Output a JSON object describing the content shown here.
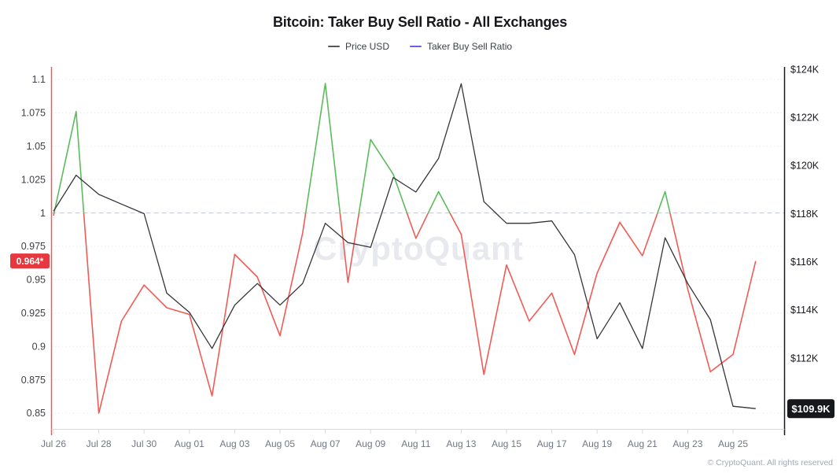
{
  "header": {
    "title": "Bitcoin: Taker Buy Sell Ratio - All Exchanges"
  },
  "legend": [
    {
      "label": "Price USD",
      "color": "#55555c"
    },
    {
      "label": "Taker Buy Sell Ratio",
      "color": "#6760e4"
    }
  ],
  "watermark": "CryptoQuant",
  "footer": {
    "copyright": "© CryptoQuant. All rights reserved"
  },
  "colors": {
    "price_line": "#35353a",
    "ratio_above": "#5cbb5c",
    "ratio_below": "#f05b56",
    "left_axis_line": "#f05b56",
    "right_axis_line": "#17181c",
    "grid_dotted": "#e9ebee",
    "baseline_dashed": "#c9ced6",
    "x_baseline": "#d6d9de",
    "ratio_badge_bg": "#e5383f",
    "price_badge_bg": "#17181c",
    "left_tick_text": "#3f3f46",
    "right_tick_text": "#16181d",
    "x_tick_text": "#707784",
    "watermark_text": "#e7e9ee"
  },
  "chart_data": {
    "type": "line",
    "title": "Bitcoin: Taker Buy Sell Ratio - All Exchanges",
    "x": [
      "Jul 26",
      "Jul 27",
      "Jul 28",
      "Jul 29",
      "Jul 30",
      "Jul 31",
      "Aug 01",
      "Aug 02",
      "Aug 03",
      "Aug 04",
      "Aug 05",
      "Aug 06",
      "Aug 07",
      "Aug 08",
      "Aug 09",
      "Aug 10",
      "Aug 11",
      "Aug 12",
      "Aug 13",
      "Aug 14",
      "Aug 15",
      "Aug 16",
      "Aug 17",
      "Aug 18",
      "Aug 19",
      "Aug 20",
      "Aug 21",
      "Aug 22",
      "Aug 23",
      "Aug 24",
      "Aug 25",
      "Aug 26"
    ],
    "series": [
      {
        "name": "Taker Buy Sell Ratio",
        "axis": "left",
        "style": "green above 1.0, red below 1.0",
        "values": [
          0.998,
          1.076,
          0.85,
          0.919,
          0.946,
          0.929,
          0.924,
          0.863,
          0.969,
          0.952,
          0.908,
          0.985,
          1.097,
          0.948,
          1.055,
          1.029,
          0.981,
          1.016,
          0.984,
          0.879,
          0.961,
          0.919,
          0.94,
          0.894,
          0.955,
          0.993,
          0.968,
          1.016,
          0.943,
          0.881,
          0.894,
          0.964
        ]
      },
      {
        "name": "Price USD",
        "axis": "right",
        "unit": "K USD",
        "values": [
          118.1,
          119.6,
          118.8,
          118.4,
          118.0,
          114.7,
          113.9,
          112.4,
          114.2,
          115.1,
          114.2,
          115.1,
          117.6,
          116.8,
          116.6,
          119.5,
          118.9,
          120.3,
          123.4,
          118.5,
          117.6,
          117.6,
          117.7,
          116.3,
          112.8,
          114.3,
          112.4,
          117.0,
          115.1,
          113.6,
          110.0,
          109.9
        ]
      }
    ],
    "left_axis": {
      "ticks": [
        1.1,
        1.075,
        1.05,
        1.025,
        1,
        0.975,
        0.95,
        0.925,
        0.9,
        0.875,
        0.85
      ],
      "tick_labels": [
        "1.1",
        "1.075",
        "1.05",
        "1.025",
        "1",
        "0.975",
        "0.95",
        "0.925",
        "0.9",
        "0.875",
        "0.85"
      ],
      "baseline": 1,
      "range": [
        0.838,
        1.11
      ],
      "current_label": "0.964*",
      "current_value": 0.964
    },
    "right_axis": {
      "tick_values": [
        124,
        122,
        120,
        118,
        116,
        114,
        112
      ],
      "tick_labels": [
        "$124K",
        "$122K",
        "$120K",
        "$118K",
        "$116K",
        "$114K",
        "$112K"
      ],
      "current_label": "$109.9K",
      "current_value": 109.9
    },
    "x_axis": {
      "tick_labels": [
        "Jul 26",
        "Jul 28",
        "Jul 30",
        "Aug 01",
        "Aug 03",
        "Aug 05",
        "Aug 07",
        "Aug 09",
        "Aug 11",
        "Aug 13",
        "Aug 15",
        "Aug 17",
        "Aug 19",
        "Aug 21",
        "Aug 23",
        "Aug 25"
      ]
    },
    "grid": "horizontal dotted lines at left-axis ticks, dashed line at ratio = 1.0",
    "legend_position": "top center"
  }
}
